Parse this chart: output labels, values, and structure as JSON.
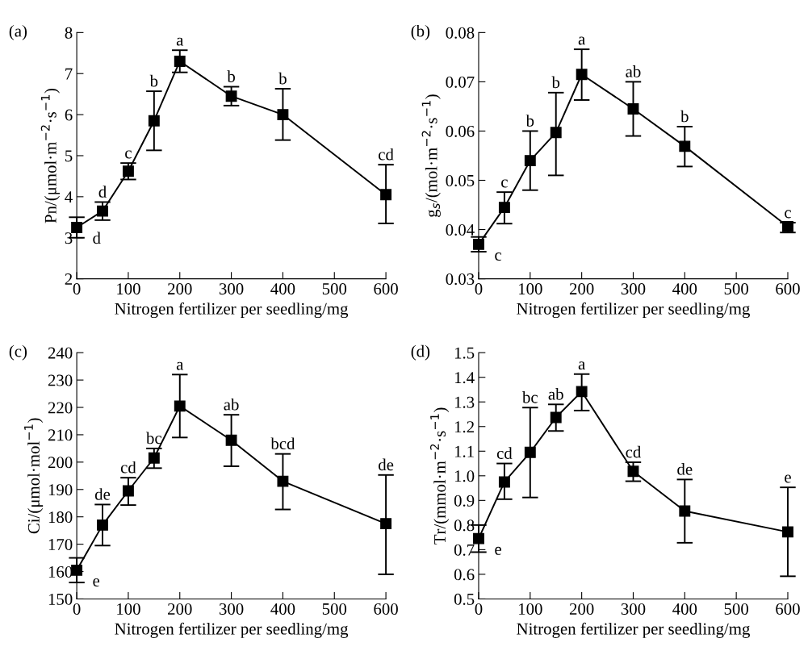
{
  "chart_data": [
    {
      "type": "line",
      "title": "(a)",
      "xlabel": "Nitrogen fertilizer per seedling/mg",
      "ylabel": "Pn/(μmol·m$^{−2}$·s$^{−1}$)",
      "x": [
        0,
        50,
        100,
        150,
        200,
        300,
        400,
        600
      ],
      "xlim": [
        0,
        600
      ],
      "xticks": [
        0,
        100,
        200,
        300,
        400,
        500,
        600
      ],
      "ylim": [
        2,
        8
      ],
      "yticks": [
        2,
        3,
        4,
        5,
        6,
        7,
        8
      ],
      "marker": "square",
      "line_style": "solid",
      "grid": false,
      "series": [
        {
          "color": "#000000",
          "values": [
            3.25,
            3.65,
            4.62,
            5.85,
            7.3,
            6.45,
            6.0,
            4.05
          ],
          "errors": [
            [
              3.0,
              3.5
            ],
            [
              3.43,
              3.87
            ],
            [
              4.42,
              4.82
            ],
            [
              5.13,
              6.57
            ],
            [
              7.03,
              7.57
            ],
            [
              6.22,
              6.68
            ],
            [
              5.38,
              6.63
            ],
            [
              3.35,
              4.78
            ]
          ]
        }
      ],
      "annotations": [
        {
          "text": "d",
          "x": 0,
          "y": 3.25
        },
        {
          "text": "d",
          "x": 50,
          "y": 3.87
        },
        {
          "text": "c",
          "x": 100,
          "y": 4.82
        },
        {
          "text": "b",
          "x": 150,
          "y": 6.57
        },
        {
          "text": "a",
          "x": 200,
          "y": 7.57
        },
        {
          "text": "b",
          "x": 300,
          "y": 6.68
        },
        {
          "text": "b",
          "x": 400,
          "y": 6.63
        },
        {
          "text": "cd",
          "x": 600,
          "y": 4.78
        }
      ]
    },
    {
      "type": "line",
      "title": "(b)",
      "xlabel": "Nitrogen fertilizer per seedling/mg",
      "ylabel": "g$_{s}$/(mol·m$^{−2}$·s$^{−1}$)",
      "x": [
        0,
        50,
        100,
        150,
        200,
        300,
        400,
        600
      ],
      "xlim": [
        0,
        600
      ],
      "xticks": [
        0,
        100,
        200,
        300,
        400,
        500,
        600
      ],
      "ylim": [
        0.03,
        0.08
      ],
      "yticks": [
        0.03,
        0.04,
        0.05,
        0.06,
        0.07,
        0.08
      ],
      "marker": "square",
      "line_style": "solid",
      "grid": false,
      "series": [
        {
          "color": "#000000",
          "values": [
            0.037,
            0.0445,
            0.054,
            0.0597,
            0.0715,
            0.0645,
            0.0569,
            0.0406
          ],
          "errors": [
            [
              0.0355,
              0.0385
            ],
            [
              0.0412,
              0.0476
            ],
            [
              0.048,
              0.06
            ],
            [
              0.051,
              0.0678
            ],
            [
              0.0663,
              0.0766
            ],
            [
              0.059,
              0.07
            ],
            [
              0.0528,
              0.0609
            ],
            [
              0.0394,
              0.0414
            ]
          ]
        }
      ],
      "annotations": [
        {
          "text": "c",
          "x": 0,
          "y": 0.037
        },
        {
          "text": "c",
          "x": 50,
          "y": 0.0476
        },
        {
          "text": "b",
          "x": 100,
          "y": 0.06
        },
        {
          "text": "b",
          "x": 150,
          "y": 0.0678
        },
        {
          "text": "a",
          "x": 200,
          "y": 0.0766
        },
        {
          "text": "ab",
          "x": 300,
          "y": 0.07
        },
        {
          "text": "b",
          "x": 400,
          "y": 0.0609
        },
        {
          "text": "c",
          "x": 600,
          "y": 0.0414
        }
      ]
    },
    {
      "type": "line",
      "title": "(c)",
      "xlabel": "Nitrogen fertilizer per seedling/mg",
      "ylabel": "Ci/(μmol·mol$^{−1}$)",
      "x": [
        0,
        50,
        100,
        150,
        200,
        300,
        400,
        600
      ],
      "xlim": [
        0,
        600
      ],
      "xticks": [
        0,
        100,
        200,
        300,
        400,
        500,
        600
      ],
      "ylim": [
        150,
        240
      ],
      "yticks": [
        150,
        160,
        170,
        180,
        190,
        200,
        210,
        220,
        230,
        240
      ],
      "marker": "square",
      "line_style": "solid",
      "grid": false,
      "series": [
        {
          "color": "#000000",
          "values": [
            160.5,
            177,
            189.5,
            201.5,
            220.5,
            208,
            193,
            177.5
          ],
          "errors": [
            [
              156,
              165
            ],
            [
              169.5,
              184.5
            ],
            [
              184.3,
              194.3
            ],
            [
              197.8,
              205
            ],
            [
              209,
              232
            ],
            [
              198.5,
              217.3
            ],
            [
              182.7,
              203
            ],
            [
              159,
              195.3
            ]
          ]
        }
      ],
      "annotations": [
        {
          "text": "e",
          "x": 0,
          "y": 160.5
        },
        {
          "text": "de",
          "x": 50,
          "y": 184.5
        },
        {
          "text": "cd",
          "x": 100,
          "y": 194.3
        },
        {
          "text": "bc",
          "x": 150,
          "y": 205
        },
        {
          "text": "a",
          "x": 200,
          "y": 232
        },
        {
          "text": "ab",
          "x": 300,
          "y": 217.3
        },
        {
          "text": "bcd",
          "x": 400,
          "y": 203
        },
        {
          "text": "de",
          "x": 600,
          "y": 195.3
        }
      ]
    },
    {
      "type": "line",
      "title": "(d)",
      "xlabel": "Nitrogen fertilizer per seedling/mg",
      "ylabel": "Tr/(mmol·m$^{−2}$·s$^{−1}$)",
      "x": [
        0,
        50,
        100,
        150,
        200,
        300,
        400,
        600
      ],
      "xlim": [
        0,
        600
      ],
      "xticks": [
        0,
        100,
        200,
        300,
        400,
        500,
        600
      ],
      "ylim": [
        0.5,
        1.5
      ],
      "yticks": [
        0.5,
        0.6,
        0.7,
        0.8,
        0.9,
        {
          "value": 1.0,
          "label": "1.0"
        },
        1.1,
        1.2,
        1.3,
        1.4,
        1.5
      ],
      "marker": "square",
      "line_style": "solid",
      "grid": false,
      "series": [
        {
          "color": "#000000",
          "values": [
            0.745,
            0.975,
            1.095,
            1.237,
            1.342,
            1.018,
            0.857,
            0.772
          ],
          "errors": [
            [
              0.69,
              0.8
            ],
            [
              0.905,
              1.05
            ],
            [
              0.912,
              1.277
            ],
            [
              1.182,
              1.29
            ],
            [
              1.265,
              1.413
            ],
            [
              0.978,
              1.055
            ],
            [
              0.728,
              0.985
            ],
            [
              0.592,
              0.953
            ]
          ]
        }
      ],
      "annotations": [
        {
          "text": "e",
          "x": 0,
          "y": 0.745
        },
        {
          "text": "cd",
          "x": 50,
          "y": 1.05
        },
        {
          "text": "bc",
          "x": 100,
          "y": 1.277
        },
        {
          "text": "ab",
          "x": 150,
          "y": 1.29
        },
        {
          "text": "a",
          "x": 200,
          "y": 1.413
        },
        {
          "text": "cd",
          "x": 300,
          "y": 1.055
        },
        {
          "text": "de",
          "x": 400,
          "y": 0.985
        },
        {
          "text": "e",
          "x": 600,
          "y": 0.953
        }
      ]
    }
  ]
}
